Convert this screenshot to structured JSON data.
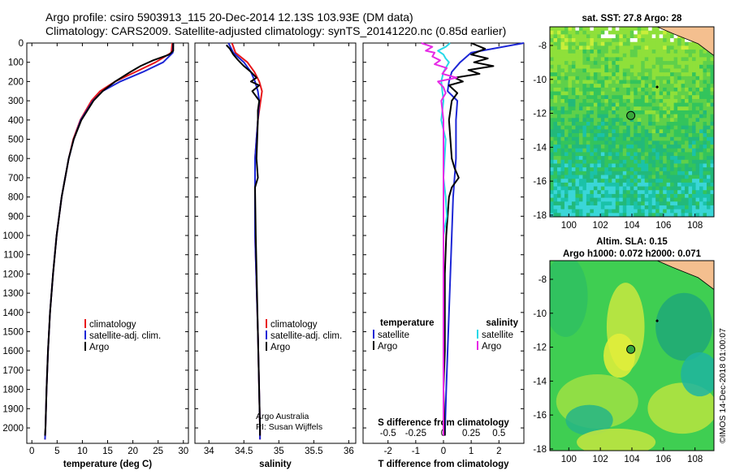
{
  "header": {
    "title_line1": "Argo profile: csiro 5903913_115 20-Dec-2014 12.13S 103.93E (DM data)",
    "title_line2": "Climatology: CARS2009. Satellite-adjusted climatology: synTS_20141220.nc (0.85d earlier)"
  },
  "side_text": "©IMOS 14-Dec-2018 01:00:07",
  "colors": {
    "climatology": "#e8161a",
    "satellite": "#1c26d6",
    "argo": "#000000",
    "sat_salinity": "#27d8e8",
    "argo_salinity": "#e62ae6",
    "land": "#f4bf8f"
  },
  "depth_axis": {
    "min": 0,
    "max": 2080,
    "ticks": [
      0,
      100,
      200,
      300,
      400,
      500,
      600,
      700,
      800,
      900,
      1000,
      1100,
      1200,
      1300,
      1400,
      1500,
      1600,
      1700,
      1800,
      1900,
      2000
    ]
  },
  "chart_data": [
    {
      "type": "line",
      "xlabel": "temperature (deg C)",
      "xlim": [
        -1,
        31
      ],
      "xticks": [
        0,
        5,
        10,
        15,
        20,
        25,
        30
      ],
      "legend": [
        "climatology",
        "satellite-adj. clim.",
        "Argo"
      ],
      "series": [
        {
          "name": "climatology",
          "depth": [
            0,
            50,
            100,
            150,
            200,
            250,
            300,
            400,
            500,
            600,
            800,
            1000,
            1200,
            1400,
            1600,
            1800,
            2000,
            2060
          ],
          "value": [
            27.8,
            27.6,
            24.5,
            20.5,
            16.5,
            13.5,
            11.8,
            9.6,
            8.2,
            7.3,
            5.9,
            4.9,
            4.2,
            3.6,
            3.2,
            2.9,
            2.7,
            2.6
          ]
        },
        {
          "name": "satellite-adj. clim.",
          "depth": [
            0,
            50,
            100,
            150,
            200,
            250,
            300,
            400,
            500,
            600,
            800,
            1000,
            1200,
            1400,
            1600,
            1800,
            2000,
            2060
          ],
          "value": [
            28.0,
            27.9,
            26.0,
            22.0,
            17.5,
            14.0,
            12.1,
            9.7,
            8.3,
            7.3,
            5.9,
            4.9,
            4.2,
            3.6,
            3.2,
            2.9,
            2.7,
            2.6
          ]
        },
        {
          "name": "Argo",
          "depth": [
            0,
            40,
            60,
            90,
            120,
            150,
            200,
            250,
            300,
            400,
            500,
            600,
            800,
            1000,
            1200,
            1400,
            1600,
            1800,
            2000,
            2040
          ],
          "value": [
            28.0,
            28.0,
            27.2,
            24.0,
            21.5,
            19.5,
            16.5,
            14.0,
            12.2,
            9.8,
            8.3,
            7.3,
            5.9,
            4.9,
            4.2,
            3.6,
            3.2,
            2.9,
            2.7,
            2.6
          ]
        }
      ]
    },
    {
      "type": "line",
      "xlabel": "salinity",
      "xlim": [
        33.8,
        36.1
      ],
      "xticks": [
        34,
        34.5,
        35,
        35.5,
        36
      ],
      "legend": [
        "climatology",
        "satellite-adj. clim.",
        "Argo"
      ],
      "annotations": [
        "Argo Australia",
        "PI: Susan Wijffels"
      ],
      "series": [
        {
          "name": "climatology",
          "depth": [
            0,
            50,
            100,
            150,
            200,
            250,
            300,
            400,
            600,
            1000,
            1500,
            2000,
            2060
          ],
          "value": [
            34.33,
            34.38,
            34.55,
            34.65,
            34.72,
            34.76,
            34.74,
            34.7,
            34.66,
            34.66,
            34.7,
            34.73,
            34.73
          ]
        },
        {
          "name": "satellite-adj. clim.",
          "depth": [
            0,
            50,
            100,
            150,
            200,
            250,
            300,
            400,
            600,
            1000,
            1500,
            2000,
            2060
          ],
          "value": [
            34.28,
            34.35,
            34.5,
            34.6,
            34.66,
            34.7,
            34.72,
            34.7,
            34.66,
            34.66,
            34.7,
            34.73,
            34.73
          ]
        },
        {
          "name": "Argo",
          "depth": [
            10,
            30,
            60,
            90,
            120,
            150,
            180,
            200,
            220,
            250,
            280,
            300,
            350,
            400,
            600,
            700,
            750,
            1000,
            1500,
            2000,
            2040
          ],
          "value": [
            34.25,
            34.3,
            34.35,
            34.42,
            34.5,
            34.6,
            34.68,
            34.6,
            34.72,
            34.62,
            34.68,
            34.72,
            34.7,
            34.7,
            34.68,
            34.7,
            34.66,
            34.67,
            34.7,
            34.73,
            34.73
          ]
        }
      ]
    },
    {
      "type": "line",
      "xlabel": "T difference from climatology",
      "xlim": [
        -2.9,
        2.9
      ],
      "xticks": [
        -2,
        -1,
        0,
        1,
        2
      ],
      "secondary_xlabel": "S difference from climatology",
      "secondary_xlim": [
        -0.725,
        0.725
      ],
      "secondary_xticks": [
        -0.5,
        -0.25,
        0,
        0.25,
        0.5
      ],
      "legend_left": {
        "title": "temperature",
        "items": [
          "satellite",
          "Argo"
        ]
      },
      "legend_right": {
        "title": "salinity",
        "items": [
          "satellite",
          "Argo"
        ]
      },
      "series": [
        {
          "name": "T satellite",
          "axis": "T",
          "depth": [
            0,
            50,
            100,
            150,
            200,
            250,
            300,
            400,
            600,
            800,
            1000,
            1400,
            1800,
            2040
          ],
          "value": [
            2.9,
            1.0,
            0.6,
            0.3,
            0.2,
            0.15,
            0.5,
            0.45,
            0.45,
            0.35,
            0.3,
            0.2,
            0.1,
            0.05
          ]
        },
        {
          "name": "T Argo",
          "axis": "T",
          "depth": [
            0,
            30,
            60,
            80,
            100,
            120,
            140,
            160,
            180,
            200,
            220,
            260,
            300,
            400,
            500,
            600,
            650,
            700,
            750,
            800,
            900,
            1000,
            1200,
            1400,
            1600,
            1800,
            2040
          ],
          "value": [
            1.0,
            1.5,
            1.0,
            1.6,
            1.1,
            1.8,
            0.9,
            1.3,
            0.4,
            0.7,
            0.2,
            0.5,
            0.3,
            0.2,
            0.25,
            0.3,
            0.4,
            0.55,
            0.3,
            0.2,
            0.15,
            0.1,
            0.05,
            0.05,
            0.05,
            0.0,
            0.05
          ]
        },
        {
          "name": "S satellite",
          "axis": "S",
          "depth": [
            0,
            20,
            40,
            60,
            80,
            100,
            150,
            200,
            250,
            300,
            400,
            500,
            700,
            800,
            900,
            1000,
            1400,
            1800,
            2040
          ],
          "value": [
            0.06,
            0.02,
            -0.05,
            0.0,
            0.02,
            0.05,
            0.0,
            -0.02,
            -0.01,
            0.0,
            -0.02,
            0.02,
            0.0,
            0.02,
            0.03,
            0.0,
            0.0,
            0.0,
            0.0
          ]
        },
        {
          "name": "S Argo",
          "axis": "S",
          "depth": [
            0,
            20,
            40,
            50,
            70,
            90,
            110,
            130,
            160,
            180,
            200,
            230,
            260,
            300,
            400,
            600,
            800,
            1000,
            1400,
            1800,
            2040
          ],
          "value": [
            -0.2,
            -0.1,
            -0.16,
            -0.08,
            -0.1,
            -0.03,
            -0.08,
            0.03,
            -0.01,
            0.12,
            -0.05,
            0.0,
            0.02,
            -0.02,
            0.0,
            0.0,
            0.0,
            0.0,
            0.0,
            0.0,
            0.0
          ]
        }
      ]
    },
    {
      "type": "heatmap",
      "title": "sat. SST: 27.8 Argo: 28",
      "xlim": [
        98.8,
        109.2
      ],
      "ylim": [
        -18.1,
        -6.9
      ],
      "xticks": [
        100,
        102,
        104,
        106,
        108
      ],
      "yticks": [
        -8,
        -10,
        -12,
        -14,
        -16,
        -18
      ],
      "argo_position": {
        "lon": 103.93,
        "lat": -12.13
      }
    },
    {
      "type": "heatmap",
      "title": "Altim. SLA: 0.15",
      "subtitle": "Argo h1000: 0.072 h2000: 0.071",
      "xlim": [
        98.8,
        109.2
      ],
      "ylim": [
        -18.1,
        -6.9
      ],
      "xticks": [
        100,
        102,
        104,
        106,
        108
      ],
      "yticks": [
        -8,
        -10,
        -12,
        -14,
        -16,
        -18
      ],
      "argo_position": {
        "lon": 103.93,
        "lat": -12.13
      }
    }
  ]
}
